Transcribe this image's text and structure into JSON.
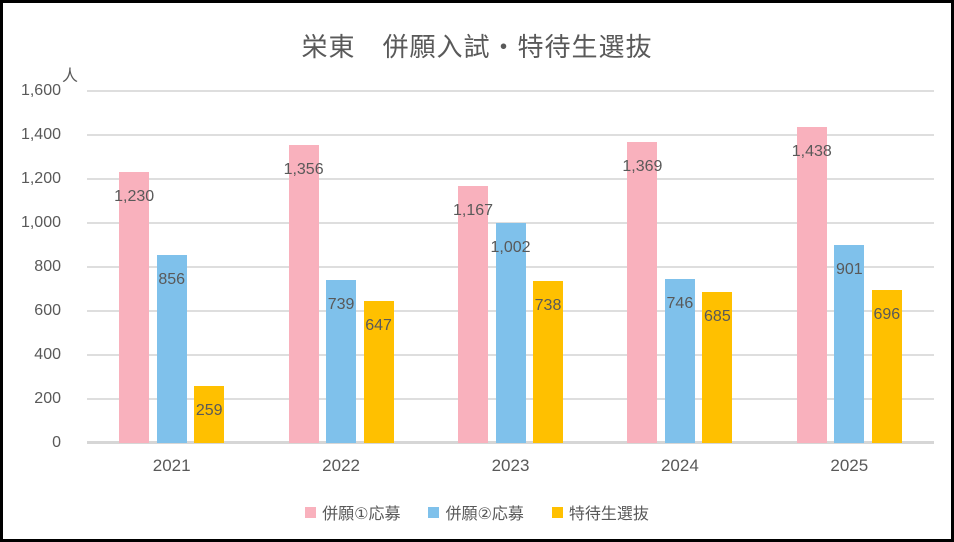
{
  "window": {
    "background": "#ffffff",
    "border_color": "#000000"
  },
  "styles": {
    "text_color": "#595959",
    "grid_color": "#dedede",
    "axis_color": "#d6d6d6"
  },
  "chart_data": {
    "type": "bar",
    "title": "栄東　併願入試・特待生選抜",
    "unit_label": "人",
    "xlabel": "",
    "ylabel": "人",
    "categories": [
      "2021",
      "2022",
      "2023",
      "2024",
      "2025"
    ],
    "series": [
      {
        "name": "併願①応募",
        "color": "#f9b1bd",
        "values": [
          1230,
          1356,
          1167,
          1369,
          1438
        ],
        "labels": [
          "1,230",
          "1,356",
          "1,167",
          "1,369",
          "1,438"
        ]
      },
      {
        "name": "併願②応募",
        "color": "#7fc1eb",
        "values": [
          856,
          739,
          1002,
          746,
          901
        ],
        "labels": [
          "856",
          "739",
          "1,002",
          "746",
          "901"
        ]
      },
      {
        "name": "特待生選抜",
        "color": "#ffc000",
        "values": [
          259,
          647,
          738,
          685,
          696
        ],
        "labels": [
          "259",
          "647",
          "738",
          "685",
          "696"
        ]
      }
    ],
    "ylim": [
      0,
      1600
    ],
    "ytick_step": 200,
    "ytick_labels": [
      "0",
      "200",
      "400",
      "600",
      "800",
      "1,000",
      "1,200",
      "1,400",
      "1,600"
    ],
    "grid": true,
    "legend_position": "bottom",
    "data_labels_position": "inside-end"
  }
}
